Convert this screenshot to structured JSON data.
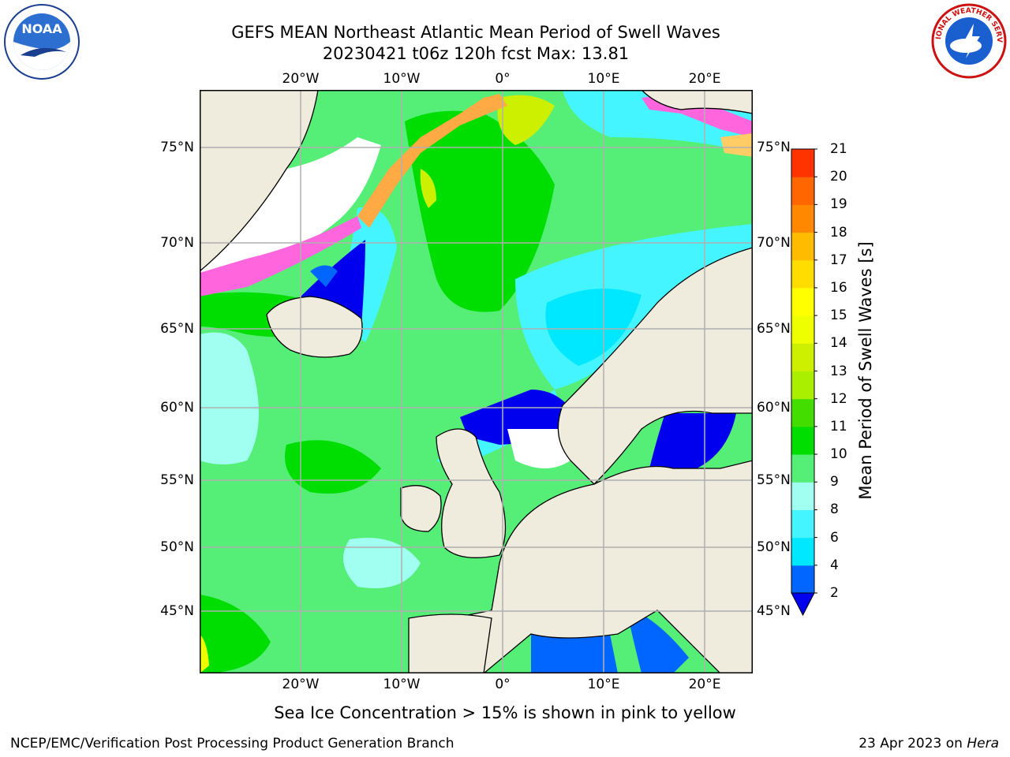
{
  "title": {
    "line1": "GEFS MEAN Northeast Atlantic Mean Period of Swell Waves",
    "line2": "20230421 t06z 120h fcst   Max: 13.81"
  },
  "map": {
    "lon_labels": [
      "20°W",
      "10°W",
      "0°",
      "10°E",
      "20°E"
    ],
    "lat_labels": [
      "75°N",
      "70°N",
      "65°N",
      "60°N",
      "55°N",
      "50°N",
      "45°N"
    ],
    "lon_range": [
      "30°W",
      "25°E"
    ],
    "lat_range": [
      "41°N",
      "79°N"
    ],
    "colors": {
      "ocean": "#55ee77",
      "land": "#efebdd",
      "frame": "#000000",
      "grid": "#b0b0b0"
    }
  },
  "colorbar": {
    "label": "Mean Period of Swell Waves [s]",
    "ticks": [
      "2",
      "4",
      "6",
      "8",
      "9",
      "10",
      "11",
      "12",
      "13",
      "14",
      "15",
      "16",
      "17",
      "18",
      "19",
      "20",
      "21"
    ],
    "colors": [
      "#0066ff",
      "#00e8ff",
      "#44f5ff",
      "#a0fff0",
      "#55ee77",
      "#00dd00",
      "#44dd00",
      "#aaee00",
      "#ccf000",
      "#eeff00",
      "#ffff00",
      "#ffdd00",
      "#ffbb00",
      "#ff8800",
      "#ff6600",
      "#ff3300",
      "#ff0000"
    ],
    "extend_color": "#0000ee"
  },
  "note": "Sea Ice Concentration > 15% is shown in pink to yellow",
  "logos": {
    "left": "NOAA",
    "right": "NATIONAL WEATHER SERVICE"
  },
  "footer": {
    "left": "NCEP/EMC/Verification Post Processing Product Generation Branch",
    "right_prefix": "23 Apr 2023 on ",
    "right_host": "Hera"
  }
}
